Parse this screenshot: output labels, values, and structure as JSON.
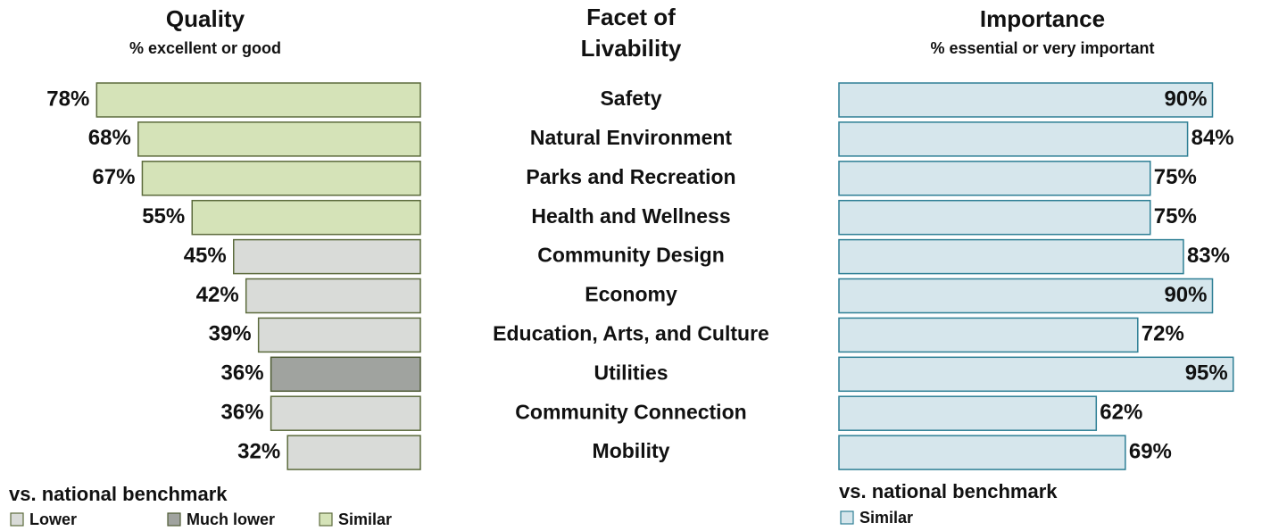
{
  "facet_header": "Facet of Livability",
  "chart_data": [
    {
      "type": "bar",
      "title": "Quality",
      "subtitle": "% excellent or good",
      "direction": "left",
      "categories": [
        "Safety",
        "Natural Environment",
        "Parks and Recreation",
        "Health and Wellness",
        "Community Design",
        "Economy",
        "Education, Arts, and Culture",
        "Utilities",
        "Community Connection",
        "Mobility"
      ],
      "values": [
        78,
        68,
        67,
        55,
        45,
        42,
        39,
        36,
        36,
        32
      ],
      "value_labels": [
        "78%",
        "68%",
        "67%",
        "55%",
        "45%",
        "42%",
        "39%",
        "36%",
        "36%",
        "32%"
      ],
      "benchmark": [
        "Similar",
        "Similar",
        "Similar",
        "Similar",
        "Lower",
        "Lower",
        "Lower",
        "Much lower",
        "Lower",
        "Lower"
      ],
      "xlim": [
        0,
        100
      ],
      "legend_title": "vs. national benchmark",
      "legend": [
        {
          "name": "Lower",
          "color": "#d9dbd8",
          "border": "#5c6b3c"
        },
        {
          "name": "Much lower",
          "color": "#a0a39f",
          "border": "#4d5a33"
        },
        {
          "name": "Similar",
          "color": "#d5e3b8",
          "border": "#5c6b3c"
        }
      ]
    },
    {
      "type": "bar",
      "title": "Importance",
      "subtitle": "% essential or very important",
      "direction": "right",
      "values": [
        90,
        84,
        75,
        75,
        83,
        90,
        72,
        95,
        62,
        69
      ],
      "value_labels": [
        "90%",
        "84%",
        "75%",
        "75%",
        "83%",
        "90%",
        "72%",
        "95%",
        "62%",
        "69%"
      ],
      "benchmark": [
        "Similar",
        "Similar",
        "Similar",
        "Similar",
        "Similar",
        "Similar",
        "Similar",
        "Similar",
        "Similar",
        "Similar"
      ],
      "xlim": [
        0,
        100
      ],
      "legend_title": "vs. national benchmark",
      "legend": [
        {
          "name": "Similar",
          "color": "#d6e6ec",
          "border": "#2e7f95"
        }
      ]
    }
  ]
}
